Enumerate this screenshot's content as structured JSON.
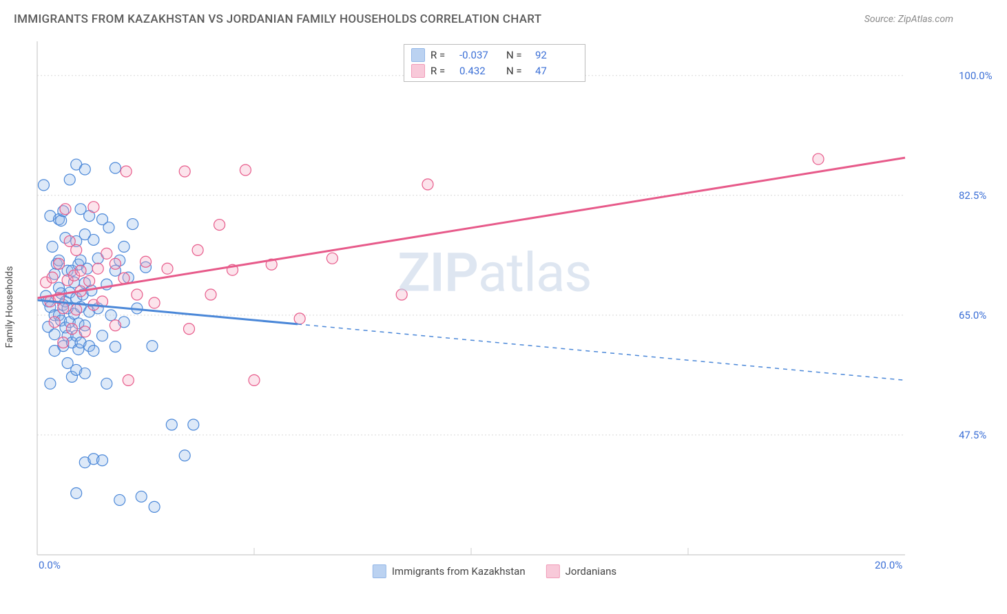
{
  "title": "IMMIGRANTS FROM KAZAKHSTAN VS JORDANIAN FAMILY HOUSEHOLDS CORRELATION CHART",
  "source_label": "Source: ZipAtlas.com",
  "watermark": {
    "part1": "ZIP",
    "part2": "atlas"
  },
  "ylabel": "Family Households",
  "chart": {
    "type": "scatter",
    "background_color": "#ffffff",
    "grid_color": "#d7d7d7",
    "axis_color": "#cccccc",
    "tick_color": "#3b6fd6",
    "xlim": [
      0,
      20
    ],
    "ylim": [
      30,
      105
    ],
    "xticks": [
      0,
      20
    ],
    "xtick_labels": [
      "0.0%",
      "20.0%"
    ],
    "yticks": [
      47.5,
      65.0,
      82.5,
      100.0
    ],
    "ytick_labels": [
      "47.5%",
      "65.0%",
      "82.5%",
      "100.0%"
    ],
    "x_grid_positions": [
      5,
      10,
      15
    ],
    "marker_radius": 8,
    "marker_stroke_width": 1.2,
    "marker_fill_opacity": 0.3,
    "trend_line_width": 3,
    "series": [
      {
        "name": "Immigrants from Kazakhstan",
        "color_stroke": "#4a87d8",
        "color_fill": "#8eb5e8",
        "R": -0.037,
        "N": 92,
        "trend": {
          "y_at_x0": 67.2,
          "y_at_x20": 55.5,
          "solid_until_x": 6.0
        },
        "points": [
          [
            0.15,
            84.0
          ],
          [
            0.2,
            67.8
          ],
          [
            0.25,
            67.0
          ],
          [
            0.25,
            63.3
          ],
          [
            0.3,
            66.2
          ],
          [
            0.3,
            79.5
          ],
          [
            0.3,
            55.0
          ],
          [
            0.35,
            75.0
          ],
          [
            0.4,
            71.0
          ],
          [
            0.4,
            65.0
          ],
          [
            0.4,
            62.2
          ],
          [
            0.4,
            59.8
          ],
          [
            0.45,
            72.5
          ],
          [
            0.5,
            69.0
          ],
          [
            0.5,
            65.0
          ],
          [
            0.5,
            73.0
          ],
          [
            0.5,
            79.0
          ],
          [
            0.55,
            78.8
          ],
          [
            0.55,
            68.2
          ],
          [
            0.55,
            64.2
          ],
          [
            0.6,
            66.5
          ],
          [
            0.6,
            80.2
          ],
          [
            0.6,
            60.5
          ],
          [
            0.65,
            63.2
          ],
          [
            0.65,
            67.0
          ],
          [
            0.65,
            76.3
          ],
          [
            0.7,
            66.0
          ],
          [
            0.7,
            71.5
          ],
          [
            0.7,
            62.0
          ],
          [
            0.7,
            58.0
          ],
          [
            0.75,
            84.8
          ],
          [
            0.75,
            68.3
          ],
          [
            0.75,
            64.0
          ],
          [
            0.8,
            56.0
          ],
          [
            0.8,
            61.0
          ],
          [
            0.8,
            71.5
          ],
          [
            0.85,
            65.2
          ],
          [
            0.85,
            69.8
          ],
          [
            0.9,
            87.0
          ],
          [
            0.9,
            75.8
          ],
          [
            0.9,
            67.5
          ],
          [
            0.9,
            62.0
          ],
          [
            0.9,
            57.0
          ],
          [
            0.9,
            39.0
          ],
          [
            0.95,
            72.4
          ],
          [
            0.95,
            63.8
          ],
          [
            0.95,
            60.0
          ],
          [
            1.0,
            80.5
          ],
          [
            1.0,
            73.0
          ],
          [
            1.0,
            66.2
          ],
          [
            1.0,
            61.0
          ],
          [
            1.05,
            68.0
          ],
          [
            1.1,
            86.3
          ],
          [
            1.1,
            76.8
          ],
          [
            1.1,
            69.7
          ],
          [
            1.1,
            63.5
          ],
          [
            1.1,
            56.5
          ],
          [
            1.1,
            43.5
          ],
          [
            1.15,
            71.8
          ],
          [
            1.2,
            79.5
          ],
          [
            1.2,
            65.5
          ],
          [
            1.2,
            60.5
          ],
          [
            1.25,
            68.6
          ],
          [
            1.3,
            76.0
          ],
          [
            1.3,
            59.8
          ],
          [
            1.3,
            44.0
          ],
          [
            1.4,
            73.3
          ],
          [
            1.4,
            66.0
          ],
          [
            1.5,
            79.0
          ],
          [
            1.5,
            62.0
          ],
          [
            1.5,
            43.8
          ],
          [
            1.6,
            69.5
          ],
          [
            1.6,
            55.0
          ],
          [
            1.65,
            77.8
          ],
          [
            1.7,
            65.0
          ],
          [
            1.8,
            86.5
          ],
          [
            1.8,
            71.5
          ],
          [
            1.8,
            60.4
          ],
          [
            1.9,
            73.0
          ],
          [
            1.9,
            38.0
          ],
          [
            2.0,
            75.0
          ],
          [
            2.0,
            64.0
          ],
          [
            2.1,
            70.5
          ],
          [
            2.2,
            78.3
          ],
          [
            2.3,
            66.0
          ],
          [
            2.4,
            38.5
          ],
          [
            2.5,
            72.0
          ],
          [
            2.65,
            60.5
          ],
          [
            2.7,
            37.0
          ],
          [
            3.1,
            49.0
          ],
          [
            3.4,
            44.5
          ],
          [
            3.6,
            49.0
          ]
        ]
      },
      {
        "name": "Jordanians",
        "color_stroke": "#e75a8a",
        "color_fill": "#f5a6c0",
        "R": 0.432,
        "N": 47,
        "trend": {
          "y_at_x0": 67.5,
          "y_at_x20": 88.0,
          "solid_until_x": 20
        },
        "points": [
          [
            0.2,
            69.8
          ],
          [
            0.3,
            67.0
          ],
          [
            0.35,
            70.5
          ],
          [
            0.4,
            64.0
          ],
          [
            0.5,
            72.5
          ],
          [
            0.5,
            67.5
          ],
          [
            0.6,
            66.0
          ],
          [
            0.6,
            61.0
          ],
          [
            0.65,
            80.5
          ],
          [
            0.7,
            70.1
          ],
          [
            0.75,
            75.8
          ],
          [
            0.8,
            63.0
          ],
          [
            0.85,
            70.8
          ],
          [
            0.9,
            74.5
          ],
          [
            0.9,
            65.8
          ],
          [
            1.0,
            68.5
          ],
          [
            1.0,
            71.5
          ],
          [
            1.1,
            62.6
          ],
          [
            1.2,
            70.0
          ],
          [
            1.3,
            80.8
          ],
          [
            1.3,
            66.5
          ],
          [
            1.4,
            71.8
          ],
          [
            1.5,
            67.0
          ],
          [
            1.6,
            74.0
          ],
          [
            1.8,
            72.5
          ],
          [
            1.8,
            63.5
          ],
          [
            2.0,
            70.4
          ],
          [
            2.05,
            86.0
          ],
          [
            2.1,
            55.5
          ],
          [
            2.3,
            68.0
          ],
          [
            2.5,
            72.8
          ],
          [
            2.7,
            66.8
          ],
          [
            3.0,
            71.8
          ],
          [
            3.4,
            86.0
          ],
          [
            3.5,
            63.0
          ],
          [
            3.7,
            74.5
          ],
          [
            4.0,
            68.0
          ],
          [
            4.2,
            78.2
          ],
          [
            4.5,
            71.6
          ],
          [
            4.8,
            86.2
          ],
          [
            5.0,
            55.5
          ],
          [
            5.4,
            72.4
          ],
          [
            6.05,
            64.5
          ],
          [
            6.8,
            73.3
          ],
          [
            8.4,
            68.0
          ],
          [
            9.0,
            84.1
          ],
          [
            18.0,
            87.8
          ]
        ]
      }
    ]
  },
  "legend_top": {
    "r_label": "R =",
    "n_label": "N ="
  },
  "legend_bottom": [
    {
      "label": "Immigrants from Kazakhstan",
      "swatch_stroke": "#4a87d8",
      "swatch_fill": "#8eb5e8"
    },
    {
      "label": "Jordanians",
      "swatch_stroke": "#e75a8a",
      "swatch_fill": "#f5a6c0"
    }
  ]
}
